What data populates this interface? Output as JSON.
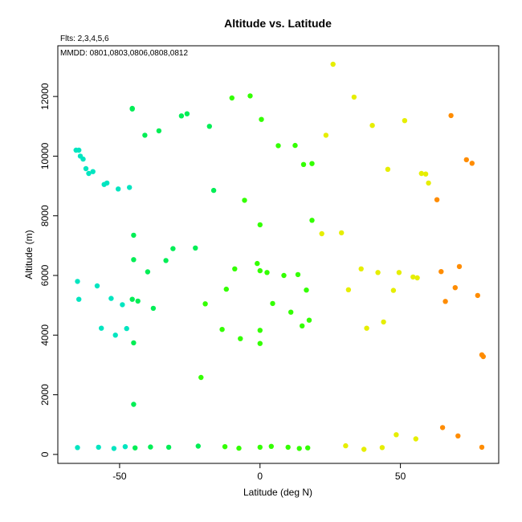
{
  "chart_data": {
    "type": "scatter",
    "title": "Altitude vs. Latitude",
    "subtitle_flights": "Flts: 2,3,4,5,6",
    "annotation_dates": "MMDD: 0801,0803,0806,0808,0812",
    "xlabel": "Latitude (deg N)",
    "ylabel": "Altitude (m)",
    "xlim": [
      -72,
      85
    ],
    "ylim": [
      -300,
      13700
    ],
    "xticks": [
      -50,
      0,
      50
    ],
    "yticks": [
      0,
      2000,
      4000,
      6000,
      8000,
      10000,
      12000
    ],
    "grid": false,
    "legend": "none",
    "colors": {
      "cyan": "#00e5c0",
      "green_dark": "#00ee55",
      "green": "#33ff00",
      "yellow_green": "#a6ff00",
      "yellow": "#e6ee00",
      "orange": "#ff8c00"
    },
    "points": [
      {
        "x": -65.5,
        "y": 10200,
        "c": "cyan"
      },
      {
        "x": -64.5,
        "y": 10200,
        "c": "cyan"
      },
      {
        "x": -64,
        "y": 10000,
        "c": "cyan"
      },
      {
        "x": -63,
        "y": 9900,
        "c": "cyan"
      },
      {
        "x": -62,
        "y": 9580,
        "c": "cyan"
      },
      {
        "x": -61,
        "y": 9420,
        "c": "cyan"
      },
      {
        "x": -59.5,
        "y": 9480,
        "c": "cyan"
      },
      {
        "x": -55.5,
        "y": 9050,
        "c": "cyan"
      },
      {
        "x": -54.5,
        "y": 9100,
        "c": "cyan"
      },
      {
        "x": -50.5,
        "y": 8900,
        "c": "cyan"
      },
      {
        "x": -46.5,
        "y": 8950,
        "c": "cyan"
      },
      {
        "x": -65,
        "y": 5800,
        "c": "cyan"
      },
      {
        "x": -64.5,
        "y": 5200,
        "c": "cyan"
      },
      {
        "x": -58,
        "y": 5650,
        "c": "cyan"
      },
      {
        "x": -53,
        "y": 5230,
        "c": "cyan"
      },
      {
        "x": -49,
        "y": 5020,
        "c": "cyan"
      },
      {
        "x": -56.5,
        "y": 4230,
        "c": "cyan"
      },
      {
        "x": -51.5,
        "y": 4000,
        "c": "cyan"
      },
      {
        "x": -47.5,
        "y": 4220,
        "c": "cyan"
      },
      {
        "x": -65,
        "y": 230,
        "c": "cyan"
      },
      {
        "x": -57.5,
        "y": 240,
        "c": "cyan"
      },
      {
        "x": -52,
        "y": 200,
        "c": "cyan"
      },
      {
        "x": -48,
        "y": 260,
        "c": "cyan"
      },
      {
        "x": -45.5,
        "y": 11600,
        "c": "green_dark"
      },
      {
        "x": -45.5,
        "y": 11580,
        "c": "green_dark"
      },
      {
        "x": -41,
        "y": 10700,
        "c": "green_dark"
      },
      {
        "x": -36,
        "y": 10850,
        "c": "green_dark"
      },
      {
        "x": -28,
        "y": 11350,
        "c": "green_dark"
      },
      {
        "x": -26,
        "y": 11420,
        "c": "green_dark"
      },
      {
        "x": -18,
        "y": 11000,
        "c": "green_dark"
      },
      {
        "x": -16.5,
        "y": 8850,
        "c": "green_dark"
      },
      {
        "x": -45,
        "y": 7350,
        "c": "green_dark"
      },
      {
        "x": -45,
        "y": 6530,
        "c": "green_dark"
      },
      {
        "x": -40,
        "y": 6120,
        "c": "green_dark"
      },
      {
        "x": -33.5,
        "y": 6500,
        "c": "green_dark"
      },
      {
        "x": -31,
        "y": 6900,
        "c": "green_dark"
      },
      {
        "x": -23,
        "y": 6920,
        "c": "green_dark"
      },
      {
        "x": -45.5,
        "y": 5200,
        "c": "green_dark"
      },
      {
        "x": -43.5,
        "y": 5140,
        "c": "green_dark"
      },
      {
        "x": -38,
        "y": 4900,
        "c": "green_dark"
      },
      {
        "x": -45,
        "y": 3740,
        "c": "green_dark"
      },
      {
        "x": -45,
        "y": 1680,
        "c": "green_dark"
      },
      {
        "x": -44.5,
        "y": 220,
        "c": "green_dark"
      },
      {
        "x": -39,
        "y": 250,
        "c": "green_dark"
      },
      {
        "x": -32.5,
        "y": 240,
        "c": "green_dark"
      },
      {
        "x": -22,
        "y": 280,
        "c": "green_dark"
      },
      {
        "x": -10,
        "y": 11950,
        "c": "green"
      },
      {
        "x": -3.5,
        "y": 12020,
        "c": "green"
      },
      {
        "x": 0.5,
        "y": 11230,
        "c": "green"
      },
      {
        "x": 6.5,
        "y": 10350,
        "c": "green"
      },
      {
        "x": 12.5,
        "y": 10360,
        "c": "green"
      },
      {
        "x": 15.5,
        "y": 9720,
        "c": "green"
      },
      {
        "x": 18.5,
        "y": 9750,
        "c": "green"
      },
      {
        "x": -5.5,
        "y": 8520,
        "c": "green"
      },
      {
        "x": 0,
        "y": 7700,
        "c": "green"
      },
      {
        "x": 18.5,
        "y": 7850,
        "c": "green"
      },
      {
        "x": -9,
        "y": 6220,
        "c": "green"
      },
      {
        "x": -1,
        "y": 6400,
        "c": "green"
      },
      {
        "x": 0,
        "y": 6160,
        "c": "green"
      },
      {
        "x": 2.5,
        "y": 6100,
        "c": "green"
      },
      {
        "x": 8.5,
        "y": 6000,
        "c": "green"
      },
      {
        "x": 13.5,
        "y": 6030,
        "c": "green"
      },
      {
        "x": -12,
        "y": 5540,
        "c": "green"
      },
      {
        "x": -19.5,
        "y": 5050,
        "c": "green"
      },
      {
        "x": 4.5,
        "y": 5060,
        "c": "green"
      },
      {
        "x": 11,
        "y": 4770,
        "c": "green"
      },
      {
        "x": 16.5,
        "y": 5510,
        "c": "green"
      },
      {
        "x": -13.5,
        "y": 4190,
        "c": "green"
      },
      {
        "x": -7,
        "y": 3880,
        "c": "green"
      },
      {
        "x": 0,
        "y": 4160,
        "c": "green"
      },
      {
        "x": 0,
        "y": 3720,
        "c": "green"
      },
      {
        "x": 15,
        "y": 4310,
        "c": "green"
      },
      {
        "x": 17.5,
        "y": 4500,
        "c": "green"
      },
      {
        "x": -21,
        "y": 2580,
        "c": "green"
      },
      {
        "x": -12.5,
        "y": 260,
        "c": "green"
      },
      {
        "x": -7.5,
        "y": 210,
        "c": "green"
      },
      {
        "x": 0,
        "y": 240,
        "c": "green"
      },
      {
        "x": 4,
        "y": 270,
        "c": "green"
      },
      {
        "x": 10,
        "y": 240,
        "c": "green"
      },
      {
        "x": 14,
        "y": 200,
        "c": "green"
      },
      {
        "x": 17,
        "y": 220,
        "c": "green"
      },
      {
        "x": 26,
        "y": 13080,
        "c": "yellow"
      },
      {
        "x": 33.5,
        "y": 11980,
        "c": "yellow"
      },
      {
        "x": 23.5,
        "y": 10700,
        "c": "yellow"
      },
      {
        "x": 40,
        "y": 11030,
        "c": "yellow"
      },
      {
        "x": 51.5,
        "y": 11190,
        "c": "yellow"
      },
      {
        "x": 45.5,
        "y": 9560,
        "c": "yellow"
      },
      {
        "x": 57.5,
        "y": 9420,
        "c": "yellow"
      },
      {
        "x": 59,
        "y": 9400,
        "c": "yellow"
      },
      {
        "x": 60,
        "y": 9100,
        "c": "yellow"
      },
      {
        "x": 22,
        "y": 7400,
        "c": "yellow"
      },
      {
        "x": 29,
        "y": 7430,
        "c": "yellow"
      },
      {
        "x": 36,
        "y": 6220,
        "c": "yellow"
      },
      {
        "x": 42,
        "y": 6100,
        "c": "yellow"
      },
      {
        "x": 49.5,
        "y": 6100,
        "c": "yellow"
      },
      {
        "x": 54.5,
        "y": 5950,
        "c": "yellow"
      },
      {
        "x": 56,
        "y": 5920,
        "c": "yellow"
      },
      {
        "x": 31.5,
        "y": 5520,
        "c": "yellow"
      },
      {
        "x": 47.5,
        "y": 5500,
        "c": "yellow"
      },
      {
        "x": 38,
        "y": 4230,
        "c": "yellow"
      },
      {
        "x": 44,
        "y": 4440,
        "c": "yellow"
      },
      {
        "x": 30.5,
        "y": 290,
        "c": "yellow"
      },
      {
        "x": 37,
        "y": 170,
        "c": "yellow"
      },
      {
        "x": 43.5,
        "y": 230,
        "c": "yellow"
      },
      {
        "x": 48.5,
        "y": 660,
        "c": "yellow"
      },
      {
        "x": 55.5,
        "y": 520,
        "c": "yellow"
      },
      {
        "x": 68,
        "y": 11360,
        "c": "orange"
      },
      {
        "x": 73.5,
        "y": 9880,
        "c": "orange"
      },
      {
        "x": 75.5,
        "y": 9760,
        "c": "orange"
      },
      {
        "x": 63,
        "y": 8540,
        "c": "orange"
      },
      {
        "x": 64.5,
        "y": 6130,
        "c": "orange"
      },
      {
        "x": 71,
        "y": 6300,
        "c": "orange"
      },
      {
        "x": 69.5,
        "y": 5590,
        "c": "orange"
      },
      {
        "x": 66,
        "y": 5130,
        "c": "orange"
      },
      {
        "x": 77.5,
        "y": 5330,
        "c": "orange"
      },
      {
        "x": 79,
        "y": 3340,
        "c": "orange"
      },
      {
        "x": 79.5,
        "y": 3280,
        "c": "orange"
      },
      {
        "x": 65,
        "y": 900,
        "c": "orange"
      },
      {
        "x": 70.5,
        "y": 620,
        "c": "orange"
      },
      {
        "x": 79,
        "y": 240,
        "c": "orange"
      }
    ]
  }
}
